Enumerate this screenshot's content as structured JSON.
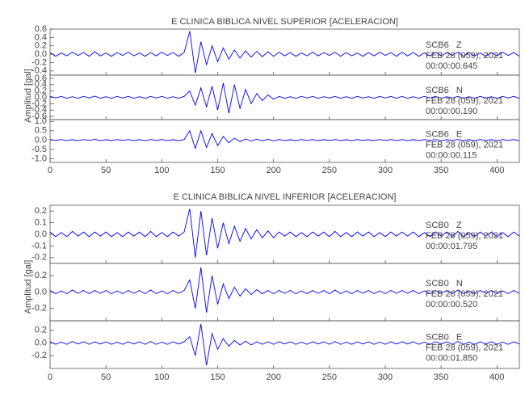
{
  "chart_data": [
    {
      "type": "line",
      "title": "E CLINICA BIBLICA NIVEL SUPERIOR [ACELERACION]",
      "ylabel": "Amplitud [gal]",
      "xlim": [
        0,
        420
      ],
      "xticks": [
        0,
        50,
        100,
        150,
        200,
        250,
        300,
        350,
        400
      ],
      "x": [
        0,
        5,
        10,
        15,
        20,
        25,
        30,
        35,
        40,
        45,
        50,
        55,
        60,
        65,
        70,
        75,
        80,
        85,
        90,
        95,
        100,
        105,
        110,
        115,
        120,
        125,
        130,
        135,
        140,
        145,
        150,
        155,
        160,
        165,
        170,
        175,
        180,
        185,
        190,
        195,
        200,
        205,
        210,
        215,
        220,
        225,
        230,
        235,
        240,
        245,
        250,
        255,
        260,
        265,
        270,
        275,
        280,
        285,
        290,
        295,
        300,
        305,
        310,
        315,
        320,
        325,
        330,
        335,
        340,
        345,
        350,
        355,
        360,
        365,
        370,
        375,
        380,
        385,
        390,
        395,
        400,
        405,
        410,
        415,
        420
      ],
      "series": [
        {
          "name": "SCB6   Z",
          "date": "FEB 28 (059), 2021",
          "time": "00:00:00.645",
          "color": "#0000ff",
          "ylim": [
            -0.5,
            0.6
          ],
          "yticks": [
            0.6,
            0.4,
            0.2,
            {
              "value": 0,
              "label": "0.0"
            },
            -0.2,
            -0.4
          ],
          "values": [
            0.04,
            -0.05,
            0.03,
            -0.04,
            0.05,
            -0.03,
            0.04,
            -0.05,
            0.06,
            -0.04,
            0.03,
            -0.05,
            0.04,
            -0.03,
            0.05,
            -0.04,
            0.03,
            -0.05,
            0.04,
            -0.04,
            0.05,
            -0.03,
            0.04,
            -0.05,
            0.04,
            0.55,
            -0.45,
            0.3,
            -0.25,
            0.2,
            -0.18,
            0.15,
            -0.12,
            0.1,
            -0.09,
            0.08,
            -0.07,
            0.07,
            -0.06,
            0.06,
            -0.05,
            0.05,
            -0.04,
            0.04,
            -0.05,
            0.03,
            -0.04,
            0.05,
            -0.04,
            0.04,
            -0.03,
            0.05,
            -0.05,
            0.04,
            -0.04,
            0.03,
            -0.05,
            0.04,
            -0.04,
            0.05,
            -0.03,
            0.04,
            -0.05,
            0.05,
            -0.04,
            0.04,
            -0.05,
            0.03,
            -0.04,
            0.05,
            -0.04,
            0.04,
            -0.03,
            0.05,
            -0.05,
            0.04,
            -0.04,
            0.03,
            -0.05,
            0.04,
            -0.04,
            0.05,
            -0.03,
            0.04,
            -0.05
          ]
        },
        {
          "name": "SCB6   N",
          "date": "FEB 28 (059), 2021",
          "time": "00:00:00.190",
          "color": "#0000ff",
          "ylim": [
            -0.7,
            0.7
          ],
          "yticks": [
            0.6,
            0.4,
            0.2,
            {
              "value": 0,
              "label": "0.0"
            },
            -0.2,
            -0.4,
            -0.6
          ],
          "values": [
            0.03,
            -0.02,
            0.03,
            -0.03,
            0.02,
            -0.03,
            0.03,
            -0.02,
            0.04,
            -0.03,
            0.02,
            -0.03,
            0.03,
            -0.02,
            0.03,
            -0.03,
            0.02,
            -0.03,
            0.03,
            -0.02,
            0.03,
            -0.03,
            0.02,
            -0.03,
            0.03,
            0.2,
            -0.25,
            0.3,
            -0.3,
            0.35,
            -0.4,
            0.45,
            -0.5,
            0.4,
            -0.35,
            0.25,
            -0.2,
            0.12,
            -0.1,
            0.08,
            -0.06,
            0.03,
            -0.03,
            0.02,
            -0.03,
            0.03,
            -0.02,
            0.03,
            -0.03,
            0.02,
            -0.02,
            0.03,
            -0.03,
            0.02,
            -0.03,
            0.03,
            -0.02,
            0.02,
            -0.03,
            0.03,
            -0.02,
            0.03,
            -0.03,
            0.03,
            -0.03,
            0.02,
            -0.03,
            0.03,
            -0.02,
            0.03,
            -0.03,
            0.02,
            -0.02,
            0.03,
            -0.03,
            0.02,
            -0.03,
            0.03,
            -0.02,
            0.02,
            -0.03,
            0.03,
            -0.02,
            0.03,
            -0.03
          ]
        },
        {
          "name": "SCB6   E",
          "date": "FEB 28 (059), 2021",
          "time": "00:00:00.115",
          "color": "#0000ff",
          "ylim": [
            -1.2,
            1.1
          ],
          "yticks": [
            {
              "value": 1,
              "label": "1.0"
            },
            0.5,
            {
              "value": 0,
              "label": "0.0"
            },
            -0.5,
            {
              "value": -1,
              "label": "-1.0"
            }
          ],
          "values": [
            0.03,
            -0.02,
            0.03,
            -0.03,
            0.02,
            -0.03,
            0.03,
            -0.02,
            0.04,
            -0.03,
            0.02,
            -0.03,
            0.03,
            -0.02,
            0.03,
            -0.03,
            0.02,
            -0.03,
            0.03,
            -0.02,
            0.03,
            -0.03,
            0.02,
            -0.03,
            0.03,
            0.5,
            -0.45,
            0.5,
            -0.4,
            0.35,
            -0.3,
            0.2,
            -0.15,
            0.1,
            -0.08,
            0.06,
            -0.05,
            0.05,
            -0.04,
            0.04,
            -0.04,
            0.03,
            -0.03,
            0.02,
            -0.03,
            0.03,
            -0.02,
            0.03,
            -0.03,
            0.02,
            -0.02,
            0.03,
            -0.03,
            0.02,
            -0.03,
            0.03,
            -0.02,
            0.02,
            -0.03,
            0.03,
            -0.02,
            0.03,
            -0.03,
            0.03,
            -0.03,
            0.02,
            -0.03,
            0.03,
            -0.02,
            0.03,
            -0.03,
            0.02,
            -0.02,
            0.03,
            -0.03,
            0.02,
            -0.03,
            0.03,
            -0.02,
            0.02,
            -0.03,
            0.03,
            -0.02,
            0.03,
            -0.03
          ]
        }
      ]
    },
    {
      "type": "line",
      "title": "E CLINICA BIBLICA NIVEL INFERIOR [ACELERACION]",
      "ylabel": "Amplitud [gal]",
      "xlim": [
        0,
        420
      ],
      "xticks": [
        0,
        50,
        100,
        150,
        200,
        250,
        300,
        350,
        400
      ],
      "x": [
        0,
        5,
        10,
        15,
        20,
        25,
        30,
        35,
        40,
        45,
        50,
        55,
        60,
        65,
        70,
        75,
        80,
        85,
        90,
        95,
        100,
        105,
        110,
        115,
        120,
        125,
        130,
        135,
        140,
        145,
        150,
        155,
        160,
        165,
        170,
        175,
        180,
        185,
        190,
        195,
        200,
        205,
        210,
        215,
        220,
        225,
        230,
        235,
        240,
        245,
        250,
        255,
        260,
        265,
        270,
        275,
        280,
        285,
        290,
        295,
        300,
        305,
        310,
        315,
        320,
        325,
        330,
        335,
        340,
        345,
        350,
        355,
        360,
        365,
        370,
        375,
        380,
        385,
        390,
        395,
        400,
        405,
        410,
        415,
        420
      ],
      "series": [
        {
          "name": "SCB0   Z",
          "date": "FEB 28 (059), 2021",
          "time": "00:00:01.795",
          "color": "#0000ff",
          "ylim": [
            -0.25,
            0.25
          ],
          "yticks": [
            0.2,
            0.1,
            {
              "value": 0,
              "label": "0.0"
            },
            -0.1,
            -0.2
          ],
          "values": [
            0.02,
            -0.02,
            0.015,
            -0.02,
            0.025,
            -0.015,
            0.02,
            -0.02,
            0.02,
            -0.015,
            0.02,
            -0.02,
            0.015,
            -0.02,
            0.02,
            -0.015,
            0.02,
            -0.02,
            0.025,
            -0.02,
            0.015,
            -0.02,
            0.02,
            -0.015,
            0.02,
            0.22,
            -0.2,
            0.2,
            -0.18,
            0.14,
            -0.12,
            0.1,
            -0.08,
            0.07,
            -0.06,
            0.05,
            -0.04,
            0.04,
            -0.03,
            0.03,
            -0.03,
            0.02,
            -0.015,
            0.02,
            -0.02,
            0.015,
            -0.02,
            0.02,
            -0.015,
            0.02,
            -0.02,
            0.025,
            -0.02,
            0.015,
            -0.02,
            0.02,
            -0.015,
            0.02,
            -0.02,
            0.015,
            -0.02,
            0.02,
            -0.015,
            0.02,
            -0.015,
            0.02,
            -0.02,
            0.015,
            -0.02,
            0.02,
            -0.015,
            0.02,
            -0.02,
            0.025,
            -0.02,
            0.015,
            -0.02,
            0.02,
            -0.015,
            0.02,
            -0.02,
            0.015,
            -0.02,
            0.02,
            -0.015
          ]
        },
        {
          "name": "SCB0   N",
          "date": "FEB 28 (059), 2021",
          "time": "00:00:00.520",
          "color": "#0000ff",
          "ylim": [
            -0.35,
            0.35
          ],
          "yticks": [
            0.2,
            {
              "value": 0,
              "label": "0.0"
            },
            -0.2
          ],
          "values": [
            0.02,
            -0.02,
            0.015,
            -0.02,
            0.025,
            -0.015,
            0.02,
            -0.02,
            0.02,
            -0.015,
            0.02,
            -0.02,
            0.015,
            -0.02,
            0.02,
            -0.015,
            0.02,
            -0.02,
            0.025,
            -0.02,
            0.015,
            -0.02,
            0.02,
            -0.015,
            0.02,
            0.15,
            -0.2,
            0.3,
            -0.25,
            0.2,
            -0.15,
            0.1,
            -0.08,
            0.06,
            -0.05,
            0.04,
            -0.03,
            0.03,
            -0.02,
            0.02,
            -0.02,
            0.02,
            -0.015,
            0.02,
            -0.02,
            0.015,
            -0.02,
            0.02,
            -0.015,
            0.02,
            -0.02,
            0.025,
            -0.02,
            0.015,
            -0.02,
            0.02,
            -0.015,
            0.02,
            -0.02,
            0.015,
            -0.02,
            0.02,
            -0.015,
            0.02,
            -0.015,
            0.02,
            -0.02,
            0.015,
            -0.02,
            0.02,
            -0.015,
            0.02,
            -0.02,
            0.025,
            -0.02,
            0.015,
            -0.02,
            0.02,
            -0.015,
            0.02,
            -0.02,
            0.015,
            -0.02,
            0.02,
            -0.015
          ]
        },
        {
          "name": "SCB0   E",
          "date": "FEB 28 (059), 2021",
          "time": "00:00:01.850",
          "color": "#0000ff",
          "ylim": [
            -0.4,
            0.35
          ],
          "yticks": [
            0.2,
            {
              "value": 0,
              "label": "0.0"
            },
            -0.2
          ],
          "values": [
            0.02,
            -0.02,
            0.015,
            -0.02,
            0.025,
            -0.015,
            0.02,
            -0.02,
            0.02,
            -0.015,
            0.02,
            -0.02,
            0.015,
            -0.02,
            0.02,
            -0.015,
            0.02,
            -0.02,
            0.025,
            -0.02,
            0.015,
            -0.02,
            0.02,
            -0.015,
            0.02,
            0.1,
            -0.2,
            0.3,
            -0.35,
            0.15,
            -0.1,
            0.07,
            -0.05,
            0.04,
            -0.03,
            0.03,
            -0.03,
            0.02,
            -0.02,
            0.02,
            -0.02,
            0.02,
            -0.015,
            0.02,
            -0.02,
            0.015,
            -0.02,
            0.02,
            -0.015,
            0.02,
            -0.02,
            0.025,
            -0.02,
            0.015,
            -0.02,
            0.02,
            -0.015,
            0.02,
            -0.02,
            0.015,
            -0.02,
            0.02,
            -0.015,
            0.02,
            -0.015,
            0.02,
            -0.02,
            0.015,
            -0.02,
            0.02,
            -0.015,
            0.02,
            -0.02,
            0.025,
            -0.02,
            0.015,
            -0.02,
            0.02,
            -0.015,
            0.02,
            -0.02,
            0.015,
            -0.02,
            0.02,
            -0.015
          ]
        }
      ]
    }
  ]
}
